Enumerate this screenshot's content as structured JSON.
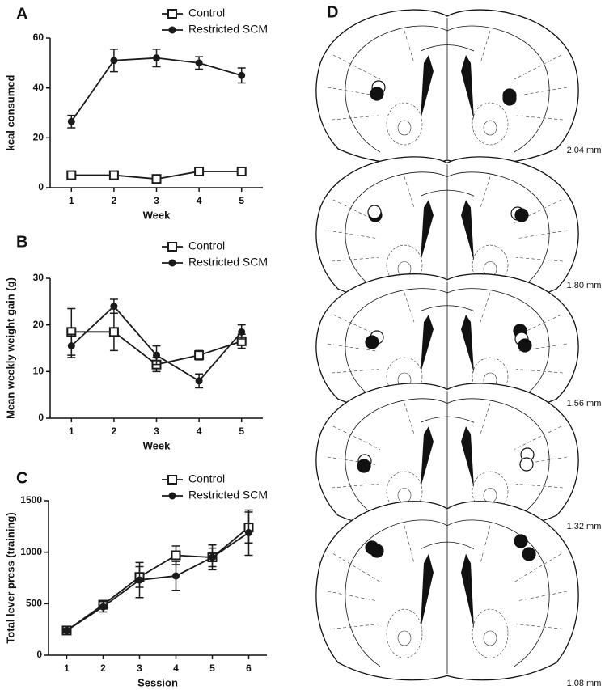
{
  "chart_data": [
    {
      "type": "line",
      "panel": "A",
      "xlabel": "Week",
      "ylabel": "kcal consumed",
      "x": [
        1,
        2,
        3,
        4,
        5
      ],
      "xlim": [
        0.5,
        5.5
      ],
      "xticks": [
        1,
        2,
        3,
        4,
        5
      ],
      "ylim": [
        0,
        60
      ],
      "yticks": [
        0,
        20,
        40,
        60
      ],
      "legend": "top",
      "series": [
        {
          "name": "Control",
          "color": "#1a1a1a",
          "marker": "open-square",
          "values": [
            5,
            5,
            3.5,
            6.5,
            6.5
          ],
          "errors": [
            0.6,
            0.6,
            0.6,
            0.6,
            0.6
          ]
        },
        {
          "name": "Restricted SCM",
          "color": "#1a1a1a",
          "marker": "filled-circle",
          "values": [
            26.5,
            51,
            52,
            50,
            45
          ],
          "errors": [
            2.5,
            4.5,
            3.5,
            2.5,
            3
          ]
        }
      ]
    },
    {
      "type": "line",
      "panel": "B",
      "xlabel": "Week",
      "ylabel": "Mean weekly weight gain (g)",
      "x": [
        1,
        2,
        3,
        4,
        5
      ],
      "xlim": [
        0.5,
        5.5
      ],
      "xticks": [
        1,
        2,
        3,
        4,
        5
      ],
      "ylim": [
        0,
        30
      ],
      "yticks": [
        0,
        10,
        20,
        30
      ],
      "legend": "top",
      "series": [
        {
          "name": "Control",
          "color": "#1a1a1a",
          "marker": "open-square",
          "values": [
            18.5,
            18.5,
            11.5,
            13.5,
            16.5
          ],
          "errors": [
            5,
            4,
            1.5,
            1,
            1.5
          ]
        },
        {
          "name": "Restricted SCM",
          "color": "#1a1a1a",
          "marker": "filled-circle",
          "values": [
            15.5,
            24,
            13.5,
            8,
            18.5
          ],
          "errors": [
            2.5,
            1.5,
            2,
            1.5,
            1.5
          ]
        }
      ]
    },
    {
      "type": "line",
      "panel": "C",
      "xlabel": "Session",
      "ylabel": "Total lever press (training)",
      "x": [
        1,
        2,
        3,
        4,
        5,
        6
      ],
      "xlim": [
        0.5,
        6.5
      ],
      "xticks": [
        1,
        2,
        3,
        4,
        5,
        6
      ],
      "ylim": [
        0,
        1500
      ],
      "yticks": [
        0,
        500,
        1000,
        1500
      ],
      "legend": "top",
      "series": [
        {
          "name": "Control",
          "color": "#1a1a1a",
          "marker": "open-square",
          "values": [
            240,
            490,
            760,
            970,
            950,
            1240
          ],
          "errors": [
            20,
            40,
            100,
            90,
            90,
            150
          ]
        },
        {
          "name": "Restricted SCM",
          "color": "#1a1a1a",
          "marker": "filled-circle",
          "values": [
            240,
            470,
            730,
            770,
            950,
            1190
          ],
          "errors": [
            20,
            50,
            170,
            140,
            120,
            220
          ]
        }
      ]
    }
  ],
  "diagram": {
    "panel": "D",
    "sections": [
      {
        "label": "2.04 mm"
      },
      {
        "label": "1.80 mm"
      },
      {
        "label": "1.56 mm"
      },
      {
        "label": "1.32 mm"
      },
      {
        "label": "1.08 mm"
      }
    ]
  }
}
